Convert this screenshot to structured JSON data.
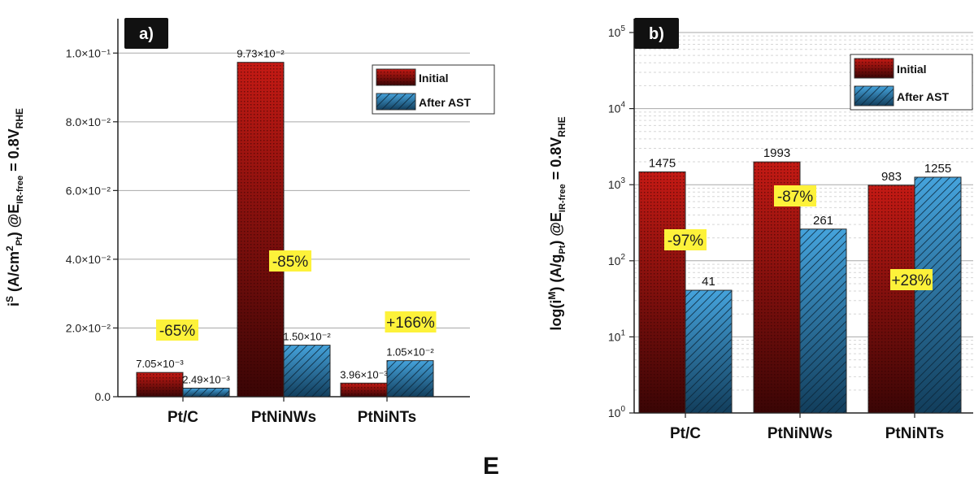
{
  "caption": "E",
  "legend": {
    "initial": "Initial",
    "after": "After AST"
  },
  "colors": {
    "initial_top": "#c41a14",
    "initial_bottom": "#3a0505",
    "after_top": "#45a3dc",
    "after_bottom": "#123e5c",
    "highlight": "#fdf23a"
  },
  "chart_data": [
    {
      "type": "bar",
      "panel": "a)",
      "scale": "linear",
      "grid": true,
      "legend_position": "top-right",
      "ylabel": "i^S (A/cm^2_Pt) @E_IR-free = 0.8V_RHE",
      "ylim": [
        0,
        0.11
      ],
      "yticks": [
        0,
        0.02,
        0.04,
        0.06,
        0.08,
        0.1
      ],
      "ytick_labels": [
        "0.0",
        "2.0×10⁻²",
        "4.0×10⁻²",
        "6.0×10⁻²",
        "8.0×10⁻²",
        "1.0×10⁻¹"
      ],
      "categories": [
        "Pt/C",
        "PtNiNWs",
        "PtNiNTs"
      ],
      "series": [
        {
          "name": "Initial",
          "values": [
            0.00705,
            0.0973,
            0.00396
          ],
          "labels": [
            "7.05×10⁻³",
            "9.73×10⁻²",
            "3.96×10⁻³"
          ]
        },
        {
          "name": "After AST",
          "values": [
            0.00249,
            0.015,
            0.0105
          ],
          "labels": [
            "2.49×10⁻³",
            "1.50×10⁻²",
            "1.05×10⁻²"
          ]
        }
      ],
      "changes": [
        "-65%",
        "-85%",
        "+166%"
      ]
    },
    {
      "type": "bar",
      "panel": "b)",
      "scale": "log",
      "grid": true,
      "legend_position": "top-right",
      "ylabel": "log(i^M) (A/g_Pt) @E_IR-free = 0.8V_RHE",
      "ylim": [
        1,
        100000
      ],
      "yticks": [
        1,
        10,
        100,
        1000,
        10000,
        100000
      ],
      "ytick_exponents": [
        "0",
        "1",
        "2",
        "3",
        "4",
        "5"
      ],
      "categories": [
        "Pt/C",
        "PtNiNWs",
        "PtNiNTs"
      ],
      "series": [
        {
          "name": "Initial",
          "values": [
            1475,
            1993,
            983
          ],
          "labels": [
            "1475",
            "1993",
            "983"
          ]
        },
        {
          "name": "After AST",
          "values": [
            41,
            261,
            1255
          ],
          "labels": [
            "41",
            "261",
            "1255"
          ]
        }
      ],
      "changes": [
        "-97%",
        "-87%",
        "+28%"
      ]
    }
  ]
}
